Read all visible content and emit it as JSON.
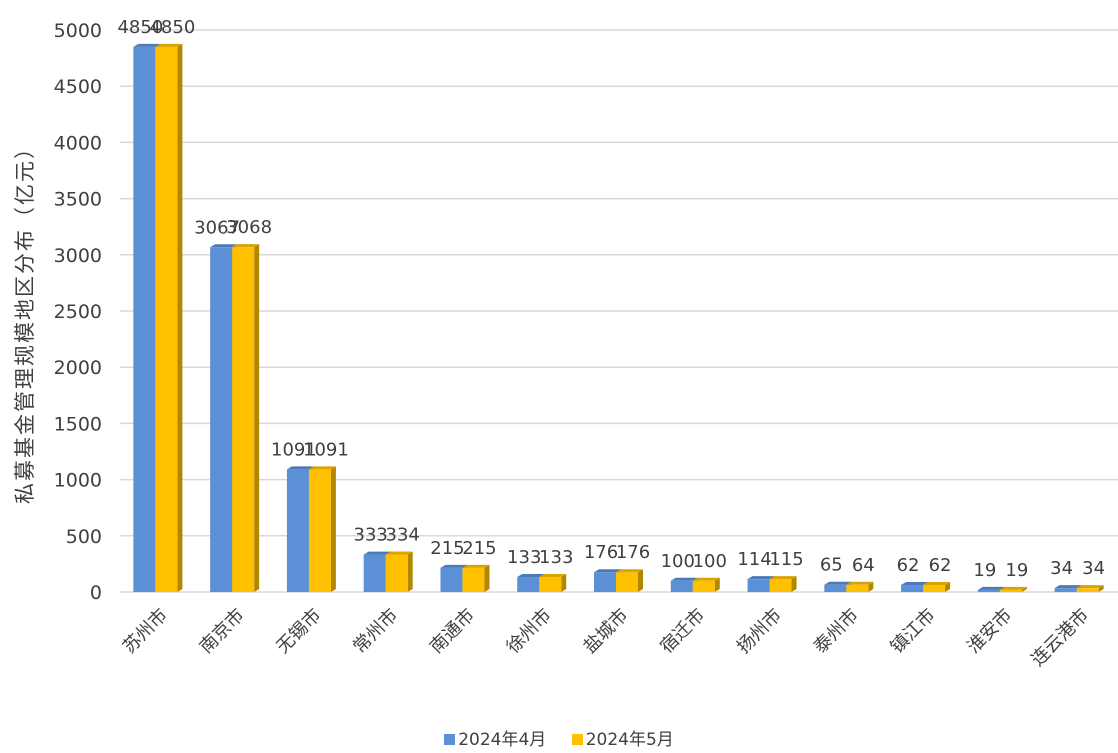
{
  "chart_data": {
    "type": "bar",
    "ylabel": "私募基金管理规模地区分布（亿元）",
    "ylim": [
      0,
      5000
    ],
    "yticks": [
      0,
      500,
      1000,
      1500,
      2000,
      2500,
      3000,
      3500,
      4000,
      4500,
      5000
    ],
    "grid": true,
    "legend_position": "bottom",
    "categories": [
      "苏州市",
      "南京市",
      "无锡市",
      "常州市",
      "南通市",
      "徐州市",
      "盐城市",
      "宿迁市",
      "扬州市",
      "泰州市",
      "镇江市",
      "淮安市",
      "连云港市"
    ],
    "series": [
      {
        "name": "2024年4月",
        "color": "#5B8FD6",
        "values": [
          4850,
          3067,
          1091,
          333,
          215,
          133,
          176,
          100,
          114,
          65,
          62,
          19,
          34
        ]
      },
      {
        "name": "2024年5月",
        "color": "#FFC000",
        "values": [
          4850,
          3068,
          1091,
          334,
          215,
          133,
          176,
          100,
          115,
          64,
          62,
          19,
          34
        ]
      }
    ]
  }
}
